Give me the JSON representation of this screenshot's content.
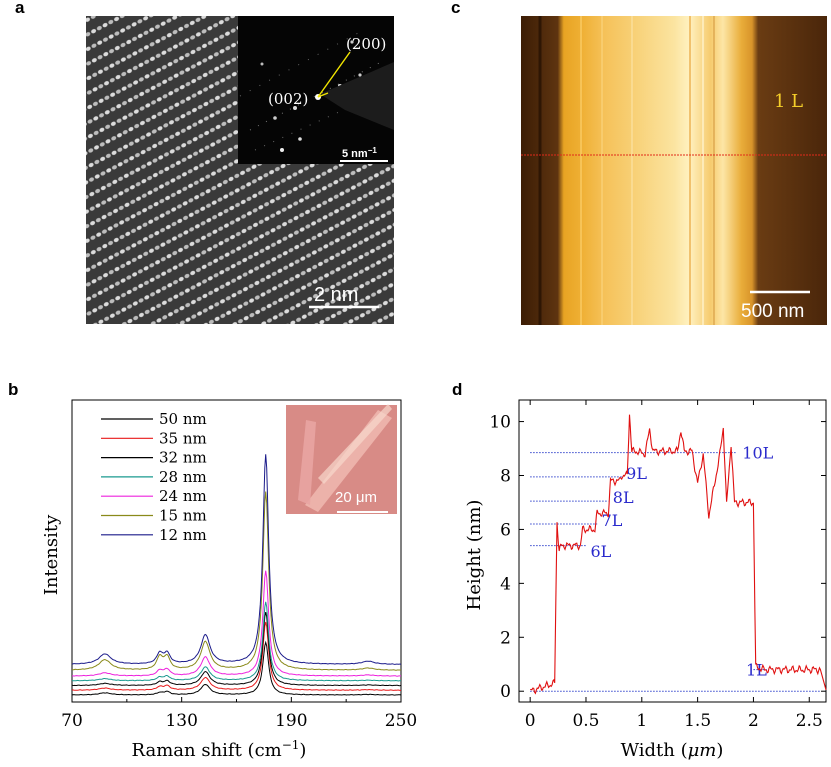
{
  "panels": {
    "a": {
      "label": "a",
      "inset_labels": [
        "(200)",
        "(002)"
      ],
      "inset_scalebar": "5 nm",
      "inset_scalebar_sup": "−1",
      "scalebar": "2 nm"
    },
    "c": {
      "label": "c",
      "layer_label": "1 L",
      "scalebar": "500 nm"
    },
    "b": {
      "label": "b",
      "inset_scalebar": "20 μm"
    },
    "d": {
      "label": "d"
    }
  },
  "chart_data": [
    {
      "type": "line",
      "panel": "b",
      "xlabel": "Raman shift (cm",
      "xlabel_sup": "−1",
      "xlabel_tail": ")",
      "ylabel": "Intensity",
      "xlim": [
        70,
        250
      ],
      "xticks": [
        70,
        130,
        190,
        250
      ],
      "peaks_cm": [
        88,
        118,
        122,
        143,
        176,
        232
      ],
      "series": [
        {
          "name": "50 nm",
          "color": "#000000",
          "offset": 0.0,
          "amps": [
            0.2,
            0.2,
            0.3,
            1.0,
            5.0,
            0.05
          ]
        },
        {
          "name": "35 nm",
          "color": "#e8191a",
          "offset": 0.45,
          "amps": [
            0.2,
            0.3,
            0.4,
            1.2,
            6.5,
            0.05
          ]
        },
        {
          "name": "32 nm",
          "color": "#000000",
          "offset": 0.9,
          "amps": [
            0.2,
            0.3,
            0.4,
            1.3,
            7.0,
            0.05
          ]
        },
        {
          "name": "28 nm",
          "color": "#1a9a8f",
          "offset": 1.35,
          "amps": [
            0.2,
            0.3,
            0.4,
            1.3,
            7.5,
            0.05
          ]
        },
        {
          "name": "24 nm",
          "color": "#ee22dd",
          "offset": 1.8,
          "amps": [
            0.3,
            0.5,
            0.6,
            1.8,
            10.0,
            0.1
          ]
        },
        {
          "name": "15 nm",
          "color": "#8a8a1a",
          "offset": 2.35,
          "amps": [
            1.0,
            1.2,
            1.2,
            2.7,
            17.0,
            0.2
          ]
        },
        {
          "name": "12 nm",
          "color": "#1a1a8a",
          "offset": 2.9,
          "amps": [
            1.0,
            1.0,
            1.0,
            2.8,
            20.0,
            0.3
          ]
        }
      ]
    },
    {
      "type": "line",
      "panel": "d",
      "xlabel": "Width (",
      "xlabel_mu": "μm",
      "xlabel_tail": ")",
      "ylabel": "Height (nm)",
      "xlim": [
        -0.1,
        2.65
      ],
      "ylim": [
        -0.4,
        10.8
      ],
      "xticks": [
        0,
        0.5,
        1,
        1.5,
        2,
        2.5
      ],
      "xtick_labels": [
        "0",
        "0.5",
        "1",
        "1.5",
        "2",
        "2.5"
      ],
      "yticks": [
        0,
        2,
        4,
        6,
        8,
        10
      ],
      "profile": {
        "x": [
          0.0,
          0.22,
          0.24,
          0.26,
          0.28,
          0.45,
          0.47,
          0.58,
          0.6,
          0.7,
          0.72,
          0.8,
          0.82,
          0.87,
          0.89,
          0.91,
          0.95,
          1.03,
          1.07,
          1.1,
          1.32,
          1.35,
          1.38,
          1.45,
          1.5,
          1.55,
          1.6,
          1.7,
          1.73,
          1.76,
          1.8,
          1.83,
          2.0,
          2.02,
          2.1,
          2.6
        ],
        "y": [
          0.0,
          0.3,
          6.3,
          5.2,
          5.4,
          5.4,
          6.0,
          6.0,
          6.6,
          6.6,
          7.8,
          7.8,
          8.0,
          8.0,
          10.3,
          8.9,
          8.9,
          8.8,
          9.7,
          8.9,
          8.9,
          9.7,
          8.9,
          8.9,
          7.7,
          8.8,
          6.5,
          8.8,
          9.8,
          6.9,
          9.2,
          7.0,
          7.0,
          0.9,
          0.8,
          0.8
        ]
      },
      "levels": [
        {
          "label": "1L",
          "y": 0.8,
          "x0": 2.0,
          "x1": 2.12,
          "tx": 2.12,
          "ty": 0.8,
          "anchor": "end"
        },
        {
          "label": "6L",
          "y": 5.4,
          "x0": 0.0,
          "x1": 0.5,
          "tx": 0.54,
          "ty": 5.2,
          "anchor": "start"
        },
        {
          "label": "7L",
          "y": 6.2,
          "x0": 0.0,
          "x1": 0.6,
          "tx": 0.64,
          "ty": 6.35,
          "anchor": "start"
        },
        {
          "label": "8L",
          "y": 7.05,
          "x0": 0.0,
          "x1": 0.7,
          "tx": 0.74,
          "ty": 7.2,
          "anchor": "start"
        },
        {
          "label": "9L",
          "y": 7.95,
          "x0": 0.0,
          "x1": 0.82,
          "tx": 0.86,
          "ty": 8.1,
          "anchor": "start"
        },
        {
          "label": "10L",
          "y": 8.85,
          "x0": 0.0,
          "x1": 1.84,
          "tx": 1.9,
          "ty": 8.85,
          "anchor": "start"
        }
      ],
      "baseline": 0.0
    }
  ]
}
